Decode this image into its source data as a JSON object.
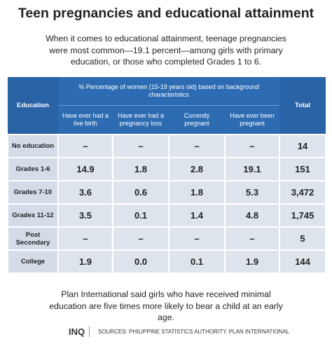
{
  "header": {
    "title": "Teen pregnancies and educational attainment",
    "subtitle": "When it comes to educational attainment, teenage pregnancies were most common—19.1 percent—among girls with primary education, or those who completed Grades 1 to 6."
  },
  "table": {
    "group_header": "% Percentage of women (15-19 years old) based on background characteristics",
    "columns": [
      "Education",
      "Have ever had a live birth",
      "Have ever had a pregnancy loss",
      "Currently pregnant",
      "Have ever been pregnant",
      "Total"
    ],
    "rows": [
      [
        "No education",
        "–",
        "–",
        "–",
        "–",
        "14"
      ],
      [
        "Grades 1-6",
        "14.9",
        "1.8",
        "2.8",
        "19.1",
        "151"
      ],
      [
        "Grades 7-10",
        "3.6",
        "0.6",
        "1.8",
        "5.3",
        "3,472"
      ],
      [
        "Grades 11-12",
        "3.5",
        "0.1",
        "1.4",
        "4.8",
        "1,745"
      ],
      [
        "Post Secondary",
        "–",
        "–",
        "–",
        "–",
        "5"
      ],
      [
        "College",
        "1.9",
        "0.0",
        "0.1",
        "1.9",
        "144"
      ]
    ]
  },
  "footer": {
    "note": "Plan International said girls who have received minimal education are five times more likely to bear a child at an early age.",
    "logo": "INQ",
    "sources": "SOURCES: PHILIPPINE STATISTICS AUTHORITY, PLAN INTERNATIONAL"
  }
}
